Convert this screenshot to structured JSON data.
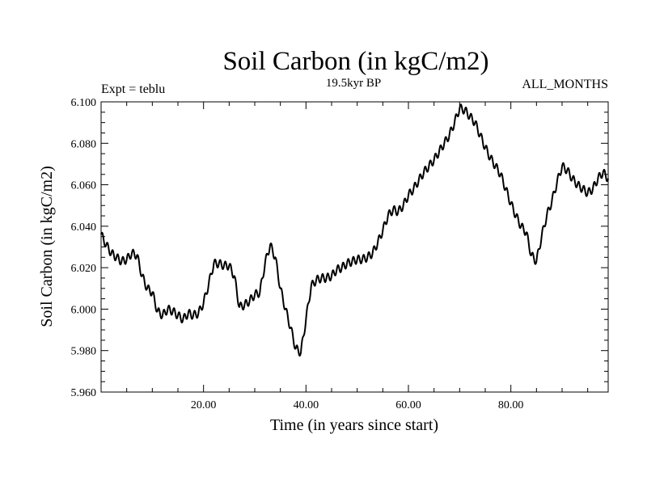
{
  "chart_data": {
    "type": "line",
    "title": "Soil Carbon (in kgC/m2)",
    "subtitle": "19.5kyr BP",
    "left_label": "Expt = teblu",
    "right_label": "ALL_MONTHS",
    "xlabel": "Time (in years since start)",
    "ylabel": "Soil Carbon (in kgC/m2)",
    "xlim": [
      0,
      99
    ],
    "ylim": [
      5.96,
      6.1
    ],
    "x_ticks": [
      20,
      40,
      60,
      80
    ],
    "x_tick_labels": [
      "20.00",
      "40.00",
      "60.00",
      "80.00"
    ],
    "y_ticks": [
      5.96,
      5.98,
      6.0,
      6.02,
      6.04,
      6.06,
      6.08,
      6.1
    ],
    "y_tick_labels": [
      "5.960",
      "5.980",
      "6.000",
      "6.020",
      "6.040",
      "6.060",
      "6.080",
      "6.100"
    ],
    "grid": false,
    "series": [
      {
        "name": "Soil Carbon",
        "color": "#000000",
        "seasonal_amplitude": 0.002,
        "points": [
          [
            0,
            6.036
          ],
          [
            1,
            6.031
          ],
          [
            2,
            6.027
          ],
          [
            3,
            6.025
          ],
          [
            4,
            6.023
          ],
          [
            5,
            6.024
          ],
          [
            6,
            6.027
          ],
          [
            7,
            6.026
          ],
          [
            8,
            6.016
          ],
          [
            9,
            6.01
          ],
          [
            10,
            6.008
          ],
          [
            11,
            5.999
          ],
          [
            12,
            5.997
          ],
          [
            13,
            6.0
          ],
          [
            14,
            5.999
          ],
          [
            15,
            5.997
          ],
          [
            16,
            5.995
          ],
          [
            17,
            5.998
          ],
          [
            18,
            5.997
          ],
          [
            19,
            5.998
          ],
          [
            20,
            6.003
          ],
          [
            21,
            6.012
          ],
          [
            22,
            6.022
          ],
          [
            23,
            6.022
          ],
          [
            24,
            6.021
          ],
          [
            25,
            6.021
          ],
          [
            26,
            6.016
          ],
          [
            27,
            6.001
          ],
          [
            28,
            6.002
          ],
          [
            29,
            6.004
          ],
          [
            30,
            6.007
          ],
          [
            31,
            6.008
          ],
          [
            32,
            6.022
          ],
          [
            33,
            6.031
          ],
          [
            34,
            6.025
          ],
          [
            35,
            6.01
          ],
          [
            36,
            6.0
          ],
          [
            37,
            5.991
          ],
          [
            38,
            5.981
          ],
          [
            39,
            5.979
          ],
          [
            40,
            5.995
          ],
          [
            41,
            6.011
          ],
          [
            42,
            6.014
          ],
          [
            43,
            6.015
          ],
          [
            44,
            6.015
          ],
          [
            45,
            6.016
          ],
          [
            46,
            6.019
          ],
          [
            47,
            6.02
          ],
          [
            48,
            6.022
          ],
          [
            49,
            6.023
          ],
          [
            50,
            6.024
          ],
          [
            51,
            6.024
          ],
          [
            52,
            6.025
          ],
          [
            53,
            6.027
          ],
          [
            54,
            6.032
          ],
          [
            55,
            6.038
          ],
          [
            56,
            6.045
          ],
          [
            57,
            6.048
          ],
          [
            58,
            6.047
          ],
          [
            59,
            6.05
          ],
          [
            60,
            6.055
          ],
          [
            61,
            6.058
          ],
          [
            62,
            6.062
          ],
          [
            63,
            6.066
          ],
          [
            64,
            6.069
          ],
          [
            65,
            6.072
          ],
          [
            66,
            6.076
          ],
          [
            67,
            6.08
          ],
          [
            68,
            6.084
          ],
          [
            69,
            6.09
          ],
          [
            70,
            6.097
          ],
          [
            71,
            6.096
          ],
          [
            72,
            6.093
          ],
          [
            73,
            6.09
          ],
          [
            74,
            6.084
          ],
          [
            75,
            6.078
          ],
          [
            76,
            6.073
          ],
          [
            77,
            6.069
          ],
          [
            78,
            6.065
          ],
          [
            79,
            6.058
          ],
          [
            80,
            6.051
          ],
          [
            81,
            6.045
          ],
          [
            82,
            6.04
          ],
          [
            83,
            6.037
          ],
          [
            84,
            6.026
          ],
          [
            85,
            6.023
          ],
          [
            86,
            6.035
          ],
          [
            87,
            6.045
          ],
          [
            88,
            6.052
          ],
          [
            89,
            6.061
          ],
          [
            90,
            6.069
          ],
          [
            91,
            6.067
          ],
          [
            92,
            6.063
          ],
          [
            93,
            6.06
          ],
          [
            94,
            6.058
          ],
          [
            95,
            6.056
          ],
          [
            96,
            6.058
          ],
          [
            97,
            6.063
          ],
          [
            98,
            6.066
          ],
          [
            99,
            6.063
          ]
        ]
      }
    ]
  }
}
